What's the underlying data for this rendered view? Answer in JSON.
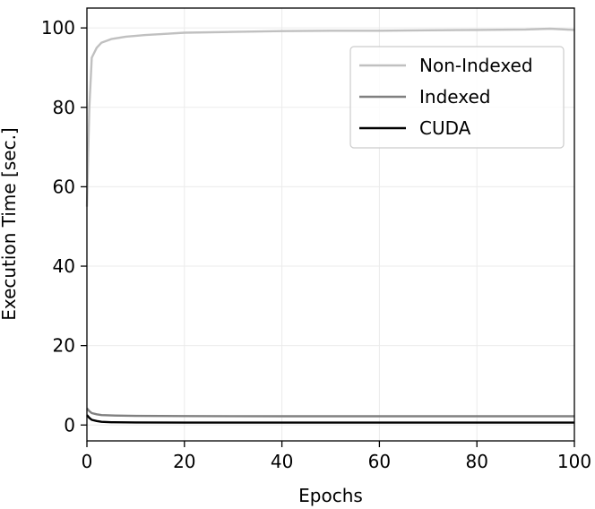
{
  "chart_data": {
    "type": "line",
    "title": "",
    "xlabel": "Epochs",
    "ylabel": "Execution Time [sec.]",
    "xlim": [
      0,
      100
    ],
    "ylim": [
      -4,
      105
    ],
    "xticks": [
      0,
      20,
      40,
      60,
      80,
      100
    ],
    "yticks": [
      0,
      20,
      40,
      60,
      80,
      100
    ],
    "grid": true,
    "legend_position": "upper-right",
    "series": [
      {
        "name": "Non-Indexed",
        "color": "#c0c0c0",
        "x": [
          0,
          0.5,
          1,
          2,
          3,
          5,
          8,
          12,
          16,
          20,
          30,
          40,
          50,
          60,
          70,
          80,
          90,
          95,
          100
        ],
        "y": [
          55,
          80,
          92.5,
          95,
          96.3,
          97.2,
          97.8,
          98.2,
          98.5,
          98.8,
          99.0,
          99.2,
          99.3,
          99.3,
          99.4,
          99.5,
          99.6,
          99.8,
          99.5
        ]
      },
      {
        "name": "Indexed",
        "color": "#808080",
        "x": [
          0,
          0.5,
          1,
          2,
          3,
          5,
          10,
          20,
          40,
          60,
          80,
          100
        ],
        "y": [
          4.2,
          3.5,
          3.0,
          2.7,
          2.5,
          2.4,
          2.3,
          2.25,
          2.2,
          2.2,
          2.2,
          2.2
        ]
      },
      {
        "name": "CUDA",
        "color": "#000000",
        "x": [
          0,
          0.5,
          1,
          2,
          3,
          5,
          10,
          20,
          40,
          60,
          80,
          100
        ],
        "y": [
          2.5,
          1.8,
          1.3,
          1.0,
          0.8,
          0.7,
          0.65,
          0.6,
          0.6,
          0.6,
          0.6,
          0.6
        ]
      }
    ]
  }
}
